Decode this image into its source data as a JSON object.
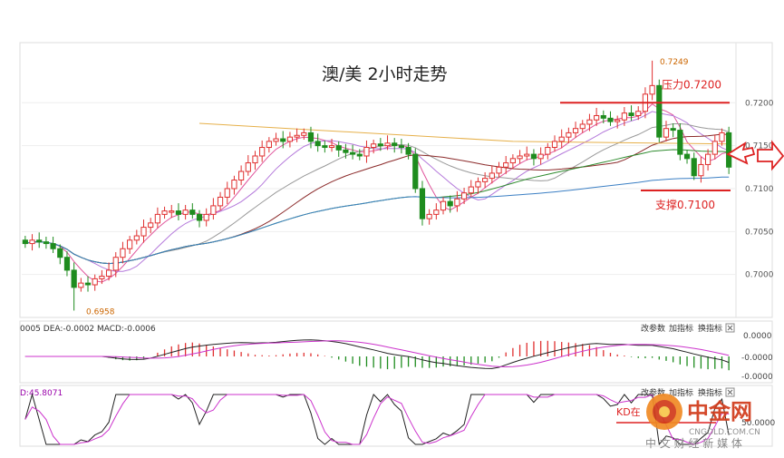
{
  "chart_data": {
    "type": "candlestick",
    "title": "澳/美 2小时走势",
    "y_ticks": [
      "0.7200",
      "0.7150",
      "0.7100",
      "0.7050",
      "0.7000"
    ],
    "y_tick_values": [
      0.72,
      0.715,
      0.71,
      0.705,
      0.7
    ],
    "ylim": [
      0.695,
      0.727
    ],
    "high_label": "0.7249",
    "high_value": 0.7249,
    "low_label": "0.6958",
    "low_value": 0.6958,
    "resistance": {
      "label": "压力0.7200",
      "value": 0.72
    },
    "support": {
      "label": "支撑0.7100",
      "value": 0.71
    },
    "closes": [
      0.7036,
      0.704,
      0.7038,
      0.7036,
      0.703,
      0.702,
      0.7005,
      0.6985,
      0.699,
      0.6988,
      0.6995,
      0.6998,
      0.7005,
      0.702,
      0.703,
      0.704,
      0.7045,
      0.7055,
      0.706,
      0.707,
      0.7074,
      0.7074,
      0.707,
      0.7075,
      0.707,
      0.7063,
      0.707,
      0.708,
      0.709,
      0.71,
      0.711,
      0.712,
      0.713,
      0.7138,
      0.7148,
      0.7155,
      0.7158,
      0.7155,
      0.716,
      0.7162,
      0.7165,
      0.7155,
      0.715,
      0.7148,
      0.715,
      0.7145,
      0.7142,
      0.714,
      0.7138,
      0.7148,
      0.7152,
      0.715,
      0.7153,
      0.715,
      0.7148,
      0.714,
      0.71,
      0.7065,
      0.707,
      0.7075,
      0.7085,
      0.708,
      0.7088,
      0.7095,
      0.7102,
      0.7108,
      0.7112,
      0.7118,
      0.7125,
      0.713,
      0.7135,
      0.7138,
      0.714,
      0.7135,
      0.714,
      0.7148,
      0.7155,
      0.716,
      0.7165,
      0.717,
      0.7175,
      0.718,
      0.7185,
      0.7182,
      0.7178,
      0.718,
      0.7188,
      0.7185,
      0.719,
      0.721,
      0.722,
      0.716,
      0.717,
      0.7168,
      0.714,
      0.7135,
      0.7115,
      0.7128,
      0.714,
      0.7155,
      0.7165,
      0.7125
    ],
    "macd_header": "0005  DEA:-0.0002  MACD:-0.0006",
    "macd_ticks": [
      "0.0000",
      "-0.0000",
      "-0.0000"
    ],
    "kd_header": "D:45.8071",
    "kd_ticks": [
      "50.0000"
    ],
    "kd_note": "KD在",
    "panel_buttons": [
      "改参数",
      "加指标",
      "换指标"
    ],
    "watermark": {
      "name": "中金网",
      "url": "CNGOLD.COM.CN",
      "slogan": "中 文 财 经 新 媒 体"
    }
  }
}
